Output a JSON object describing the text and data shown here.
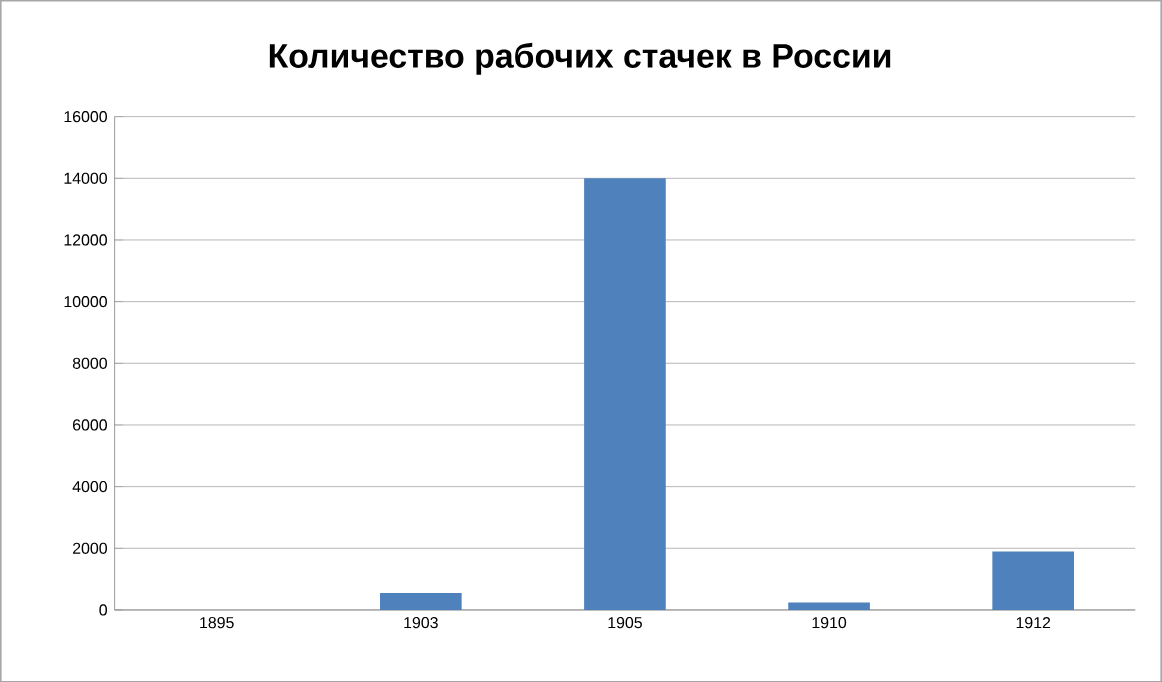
{
  "chart_data": {
    "type": "bar",
    "title": "Количество рабочих стачек в России",
    "categories": [
      "1895",
      "1903",
      "1905",
      "1910",
      "1912"
    ],
    "values": [
      0,
      550,
      14000,
      240,
      1900
    ],
    "color": "#4f81bd",
    "ylim": [
      0,
      16000
    ],
    "yticks": [
      0,
      2000,
      4000,
      6000,
      8000,
      10000,
      12000,
      14000,
      16000
    ],
    "grid": "y"
  }
}
